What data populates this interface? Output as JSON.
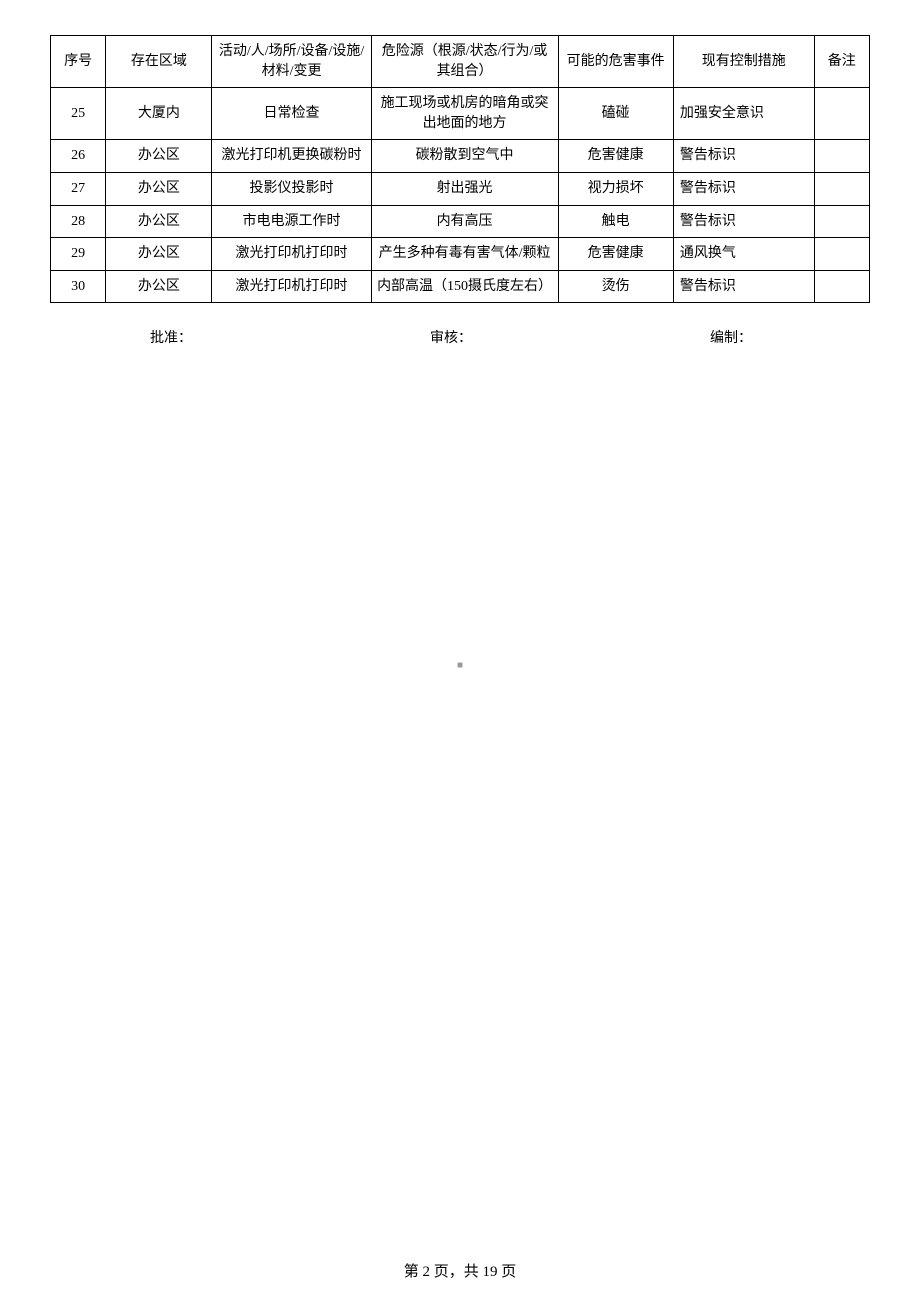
{
  "table": {
    "headers": {
      "seq": "序号",
      "area": "存在区域",
      "activity": "活动/人/场所/设备/设施/材料/变更",
      "hazard": "危险源（根源/状态/行为/或其组合）",
      "event": "可能的危害事件",
      "measure": "现有控制措施",
      "remark": "备注"
    },
    "rows": [
      {
        "seq": "25",
        "area": "大厦内",
        "activity": "日常检查",
        "hazard": "施工现场或机房的暗角或突出地面的地方",
        "event": "磕碰",
        "measure": "加强安全意识",
        "remark": ""
      },
      {
        "seq": "26",
        "area": "办公区",
        "activity": "激光打印机更换碳粉时",
        "hazard": "碳粉散到空气中",
        "event": "危害健康",
        "measure": "警告标识",
        "remark": ""
      },
      {
        "seq": "27",
        "area": "办公区",
        "activity": "投影仪投影时",
        "hazard": "射出强光",
        "event": "视力损坏",
        "measure": "警告标识",
        "remark": ""
      },
      {
        "seq": "28",
        "area": "办公区",
        "activity": "市电电源工作时",
        "hazard": "内有高压",
        "event": "触电",
        "measure": "警告标识",
        "remark": ""
      },
      {
        "seq": "29",
        "area": "办公区",
        "activity": "激光打印机打印时",
        "hazard": "产生多种有毒有害气体/颗粒",
        "event": "危害健康",
        "measure": "通风换气",
        "remark": ""
      },
      {
        "seq": "30",
        "area": "办公区",
        "activity": "激光打印机打印时",
        "hazard": "内部高温（150摄氏度左右）",
        "event": "烫伤",
        "measure": "警告标识",
        "remark": ""
      }
    ]
  },
  "signatures": {
    "approve": "批准：",
    "review": "审核：",
    "compile": "编制："
  },
  "center_mark": "■",
  "footer": "第 2 页，共 19 页"
}
